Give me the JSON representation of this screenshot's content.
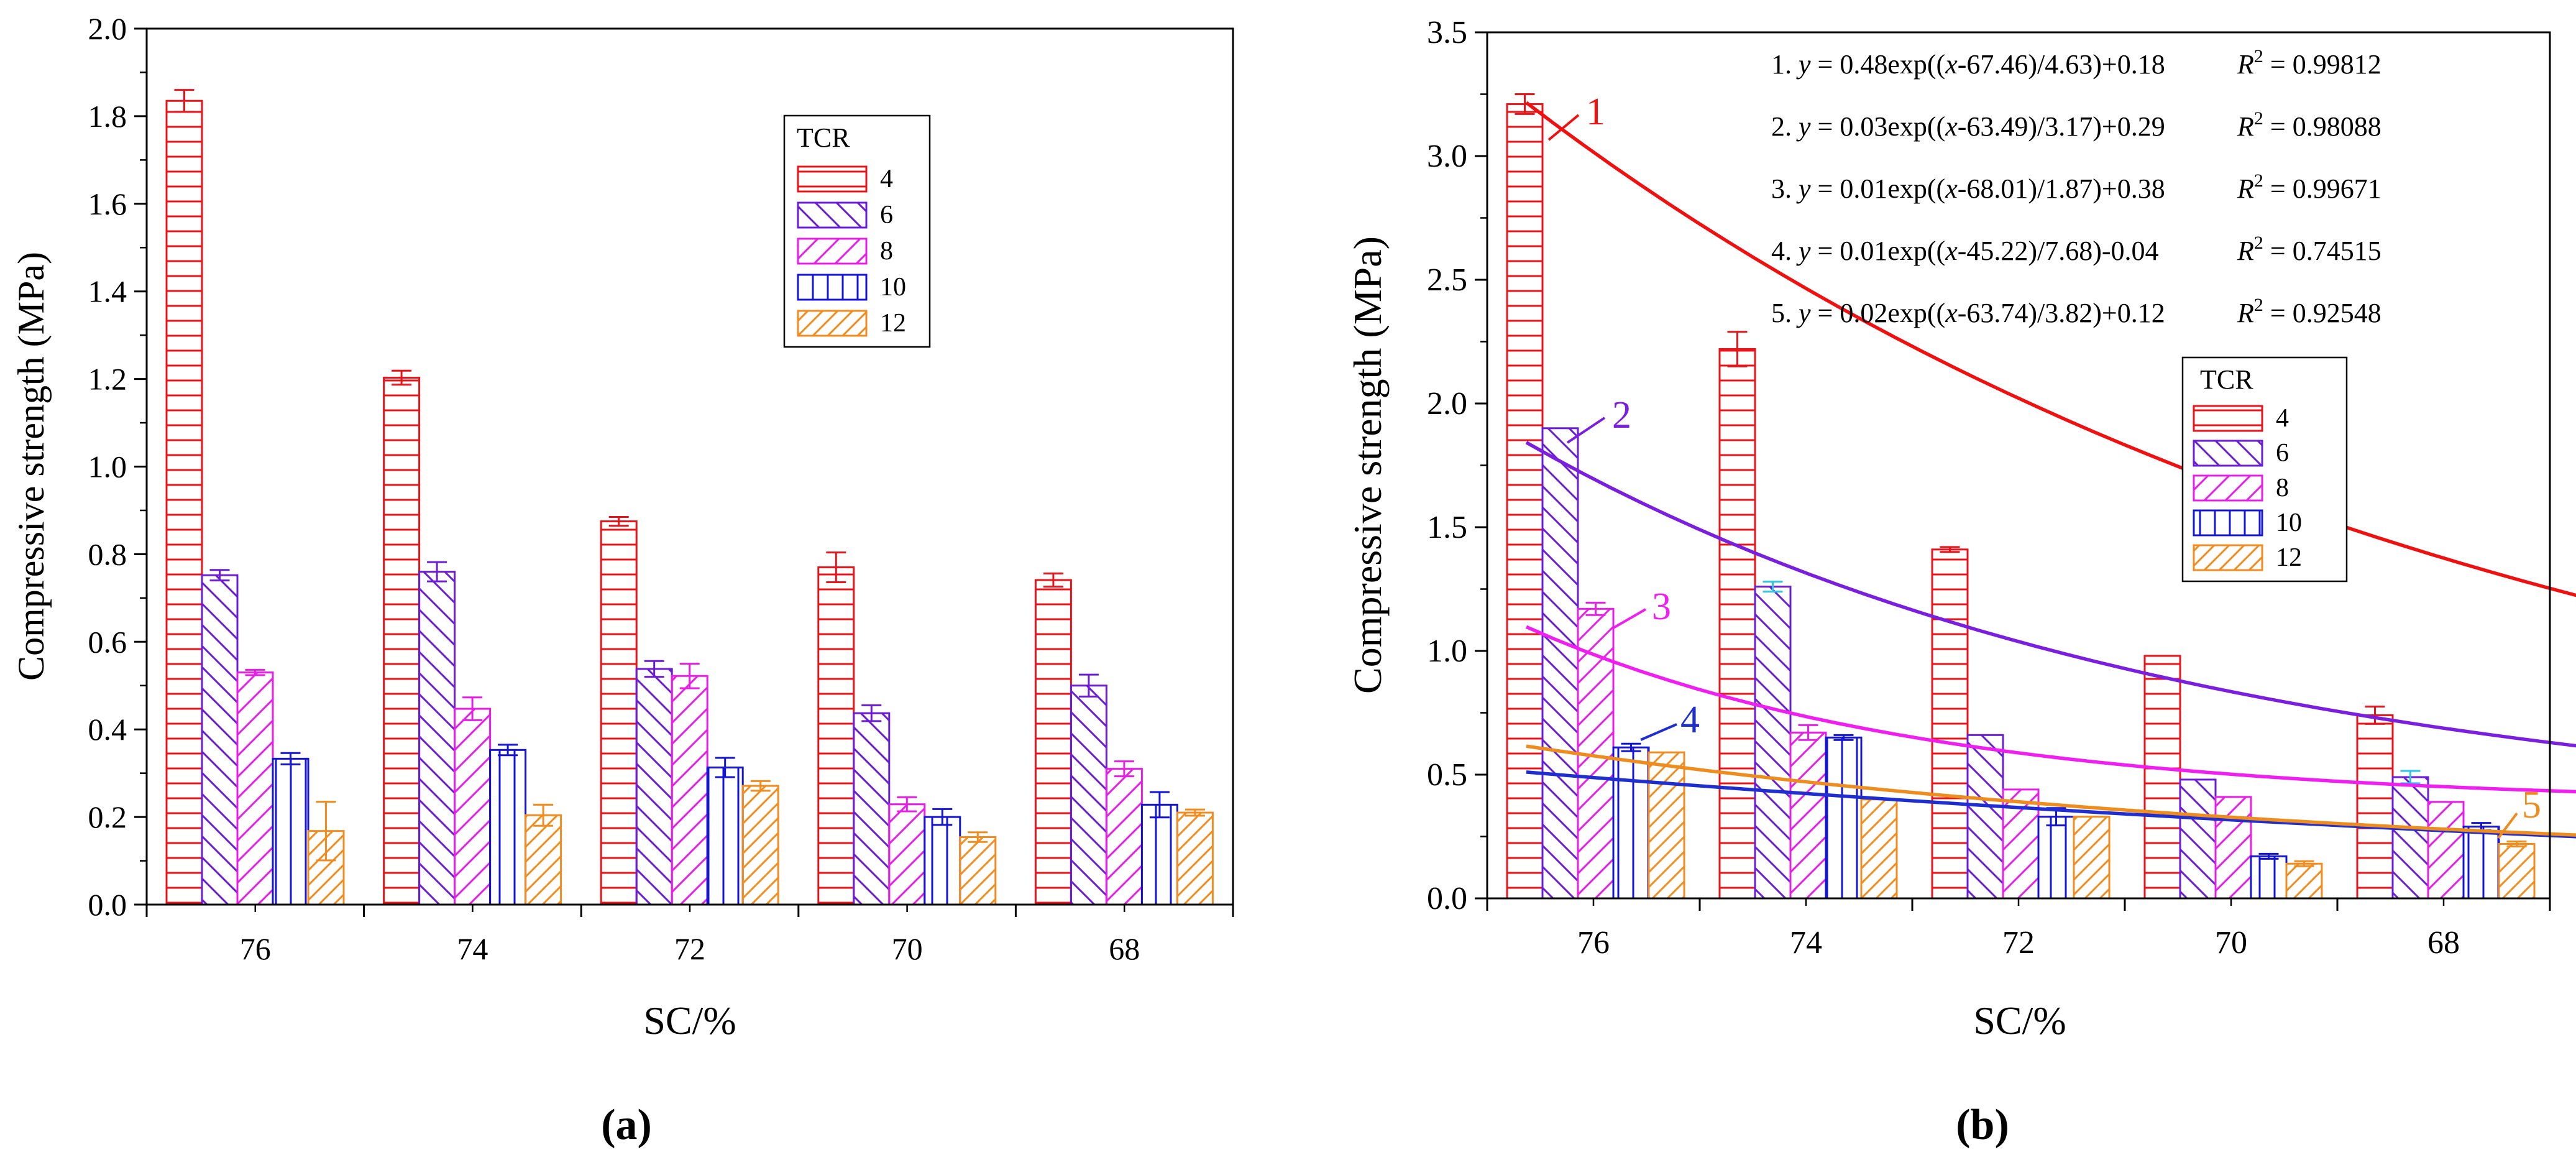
{
  "figure": {
    "panel_a_label": "(a)",
    "panel_b_label": "(b)",
    "legend_title": "TCR",
    "xlabel": "SC/%",
    "ylabel": "Compressive strength (MPa)"
  },
  "colors": {
    "series": [
      "#e8141a",
      "#6a1cd6",
      "#e81ee8",
      "#1414d6",
      "#f28c1e"
    ],
    "curves": [
      "#f01010",
      "#7a1ee0",
      "#f01ef0",
      "#1e2ed0",
      "#ee8c1e"
    ],
    "errbar_b2": "#2ec6e6"
  },
  "chart_data": [
    {
      "type": "bar",
      "panel": "a",
      "title": "",
      "xlabel": "SC/%",
      "ylabel": "Compressive strength (MPa)",
      "categories": [
        "76",
        "74",
        "72",
        "70",
        "68"
      ],
      "ylim": [
        0,
        2.0
      ],
      "yticks": [
        "0.0",
        "0.2",
        "0.4",
        "0.6",
        "0.8",
        "1.0",
        "1.2",
        "1.4",
        "1.6",
        "1.8",
        "2.0"
      ],
      "legend_title": "TCR",
      "series": [
        {
          "name": "4",
          "values": [
            1.835,
            1.203,
            0.875,
            0.77,
            0.741
          ],
          "errors": [
            0.025,
            0.016,
            0.01,
            0.034,
            0.015
          ]
        },
        {
          "name": "6",
          "values": [
            0.752,
            0.76,
            0.538,
            0.437,
            0.5
          ],
          "errors": [
            0.012,
            0.022,
            0.018,
            0.018,
            0.025
          ]
        },
        {
          "name": "8",
          "values": [
            0.53,
            0.447,
            0.522,
            0.229,
            0.31
          ],
          "errors": [
            0.006,
            0.026,
            0.028,
            0.016,
            0.017
          ]
        },
        {
          "name": "10",
          "values": [
            0.333,
            0.353,
            0.313,
            0.2,
            0.228
          ],
          "errors": [
            0.013,
            0.012,
            0.022,
            0.018,
            0.029
          ]
        },
        {
          "name": "12",
          "values": [
            0.168,
            0.204,
            0.271,
            0.154,
            0.21
          ],
          "errors": [
            0.067,
            0.024,
            0.011,
            0.011,
            0.007
          ]
        }
      ]
    },
    {
      "type": "bar",
      "panel": "b",
      "title": "",
      "xlabel": "SC/%",
      "ylabel": "Compressive strength (MPa)",
      "categories": [
        "76",
        "74",
        "72",
        "70",
        "68"
      ],
      "ylim": [
        0,
        3.5
      ],
      "yticks": [
        "0.0",
        "0.5",
        "1.0",
        "1.5",
        "2.0",
        "2.5",
        "3.0",
        "3.5"
      ],
      "legend_title": "TCR",
      "series": [
        {
          "name": "4",
          "values": [
            3.21,
            2.22,
            1.41,
            0.98,
            0.74
          ],
          "errors": [
            0.04,
            0.07,
            0.01,
            0.0,
            0.035
          ]
        },
        {
          "name": "6",
          "values": [
            1.9,
            1.26,
            0.66,
            0.48,
            0.49
          ],
          "errors": [
            0.0,
            0.02,
            0.0,
            0.0,
            0.025
          ]
        },
        {
          "name": "8",
          "values": [
            1.17,
            0.67,
            0.44,
            0.41,
            0.39
          ],
          "errors": [
            0.025,
            0.03,
            0.0,
            0.0,
            0.0
          ]
        },
        {
          "name": "10",
          "values": [
            0.61,
            0.65,
            0.33,
            0.17,
            0.29
          ],
          "errors": [
            0.015,
            0.01,
            0.035,
            0.01,
            0.015
          ]
        },
        {
          "name": "12",
          "values": [
            0.59,
            0.4,
            0.33,
            0.14,
            0.22
          ],
          "errors": [
            0.0,
            0.0,
            0.0,
            0.01,
            0.01
          ]
        }
      ],
      "fit_curves": [
        {
          "label": "1",
          "a": 0.48,
          "x0": 67.46,
          "t": 4.63,
          "c": 0.18,
          "range": [
            76,
            68
          ]
        },
        {
          "label": "2",
          "a": 0.03,
          "x0": 63.49,
          "t": 3.17,
          "c": 0.29,
          "range": [
            76,
            68
          ]
        },
        {
          "label": "3",
          "a": 0.01,
          "x0": 68.01,
          "t": 1.87,
          "c": 0.38,
          "range": [
            76,
            68
          ]
        },
        {
          "label": "4",
          "a": 0.01,
          "x0": 45.22,
          "t": 7.68,
          "c": -0.04,
          "range": [
            76,
            67.5
          ]
        },
        {
          "label": "5",
          "a": 0.02,
          "x0": 63.74,
          "t": 3.82,
          "c": 0.12,
          "range": [
            76,
            67.3
          ]
        }
      ],
      "equations": [
        {
          "num": "1.",
          "y": "y",
          "eq": " = 0.48exp((",
          "x": "x",
          "rest": "-67.46)/4.63)+0.18",
          "r": "R",
          "r2": " = 0.99812"
        },
        {
          "num": "2.",
          "y": "y",
          "eq": " = 0.03exp((",
          "x": "x",
          "rest": "-63.49)/3.17)+0.29",
          "r": "R",
          "r2": " = 0.98088"
        },
        {
          "num": "3.",
          "y": "y",
          "eq": " = 0.01exp((",
          "x": "x",
          "rest": "-68.01)/1.87)+0.38",
          "r": "R",
          "r2": " = 0.99671"
        },
        {
          "num": "4.",
          "y": "y",
          "eq": " = 0.01exp((",
          "x": "x",
          "rest": "-45.22)/7.68)-0.04",
          "r": "R",
          "r2": " = 0.74515"
        },
        {
          "num": "5.",
          "y": "y",
          "eq": " = 0.02exp((",
          "x": "x",
          "rest": "-63.74)/3.82)+0.12",
          "r": "R",
          "r2": " = 0.92548"
        }
      ]
    }
  ]
}
